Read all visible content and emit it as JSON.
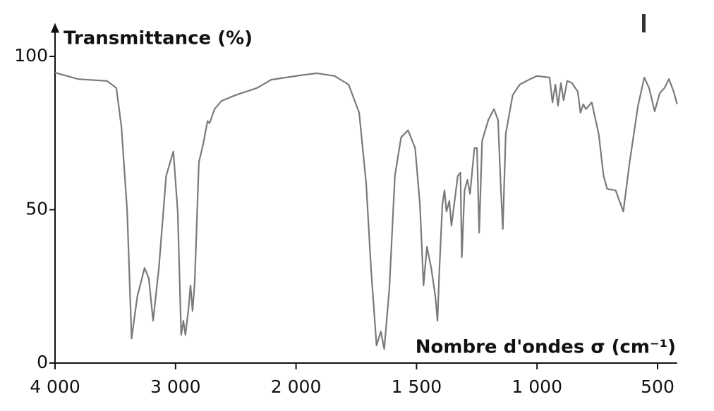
{
  "chart_data": {
    "type": "line",
    "y_label": "Transmittance (%)",
    "x_label": "Nombre d'ondes σ (cm⁻¹)",
    "xlim": [
      4000,
      419
    ],
    "ylim": [
      0,
      110
    ],
    "xticks": [
      {
        "value": 4000,
        "label": "4 000"
      },
      {
        "value": 3000,
        "label": "3 000"
      },
      {
        "value": 2000,
        "label": "2 000"
      },
      {
        "value": 1500,
        "label": "1 500"
      },
      {
        "value": 1000,
        "label": "1 000"
      },
      500
    ],
    "yticks": [
      0,
      50,
      100
    ],
    "series": [
      {
        "color": "#7a7a7a",
        "x": [
          4000,
          3808,
          3569,
          3491,
          3449,
          3401,
          3365,
          3317,
          3257,
          3222,
          3186,
          3138,
          3078,
          3018,
          2982,
          2953,
          2935,
          2918,
          2894,
          2876,
          2859,
          2841,
          2806,
          2771,
          2735,
          2718,
          2676,
          2618,
          2500,
          2324,
          2206,
          1985,
          1913,
          1840,
          1782,
          1738,
          1709,
          1689,
          1666,
          1648,
          1634,
          1613,
          1590,
          1564,
          1535,
          1506,
          1486,
          1471,
          1457,
          1439,
          1422,
          1413,
          1405,
          1393,
          1384,
          1376,
          1364,
          1355,
          1344,
          1329,
          1318,
          1312,
          1301,
          1289,
          1278,
          1260,
          1249,
          1240,
          1228,
          1202,
          1179,
          1162,
          1150,
          1142,
          1130,
          1101,
          1072,
          1029,
          1000,
          948,
          936,
          924,
          913,
          901,
          890,
          875,
          855,
          831,
          820,
          808,
          797,
          773,
          744,
          724,
          709,
          674,
          642,
          616,
          581,
          555,
          535,
          512,
          491,
          471,
          453,
          433,
          419
        ],
        "values": [
          94.7,
          92.6,
          92,
          89.7,
          77,
          49.4,
          8,
          21.8,
          31,
          27.6,
          13.8,
          31,
          61,
          69,
          49.4,
          9.2,
          13.8,
          9.2,
          17,
          25.3,
          17,
          26.4,
          65.5,
          71.3,
          78.9,
          78.2,
          82.8,
          85.5,
          87.4,
          89.7,
          92.4,
          93.8,
          94.5,
          93.6,
          90.8,
          81.6,
          58.6,
          31,
          5.7,
          10.3,
          4.6,
          24.1,
          61,
          73.6,
          75.9,
          70.1,
          51.7,
          25.3,
          37.9,
          31,
          21.8,
          13.8,
          31,
          51.7,
          56.3,
          49.4,
          52.9,
          44.8,
          51.7,
          61,
          62.1,
          34.5,
          56.3,
          59.8,
          55.2,
          70.1,
          70.1,
          42.5,
          72.4,
          79.3,
          82.8,
          79.3,
          56.3,
          43.7,
          74.7,
          87.4,
          90.8,
          92.6,
          93.6,
          93.1,
          85,
          90.8,
          83.9,
          91.3,
          85.7,
          92,
          91.3,
          88.5,
          81.6,
          84.4,
          82.8,
          85,
          74.7,
          61,
          56.8,
          56.3,
          49.4,
          65.5,
          83.9,
          93.1,
          89.7,
          82.1,
          88,
          89.7,
          92.6,
          88.5,
          84.4
        ]
      }
    ]
  }
}
